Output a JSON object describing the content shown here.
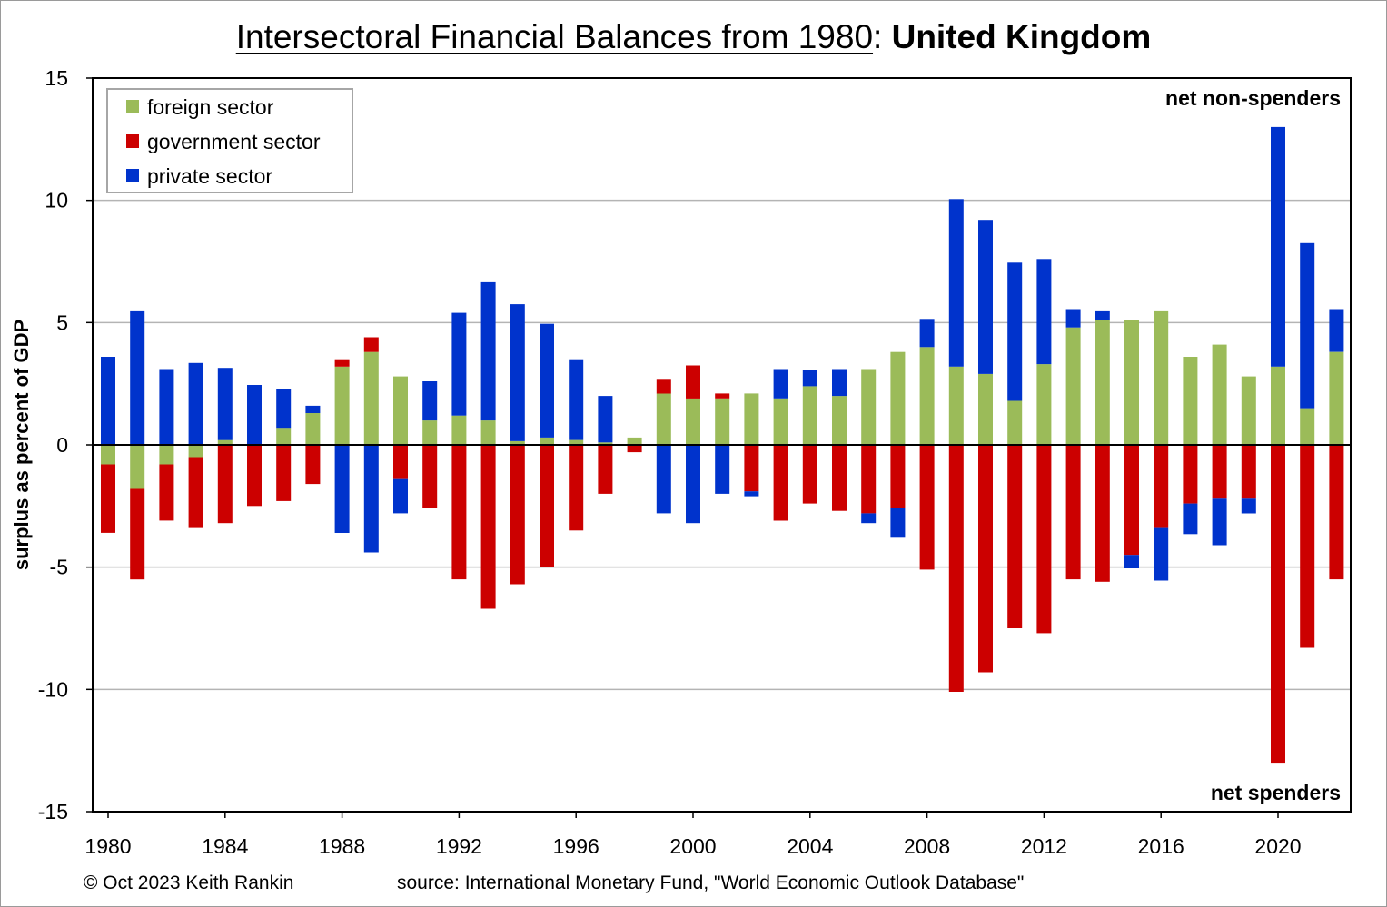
{
  "title": {
    "part1": "Intersectoral Financial Balances from 1980",
    "sep": ":",
    "part2": "United Kingdom"
  },
  "footer": {
    "credit": "© Oct 2023 Keith Rankin",
    "source": "source:  International Monetary Fund, \"World Economic Outlook Database\""
  },
  "chart_data": {
    "type": "bar",
    "stacked": true,
    "ylabel": "surplus as percent of GDP",
    "ylim": [
      -15,
      15
    ],
    "yticks": [
      15,
      10,
      5,
      0,
      -5,
      -10,
      -15
    ],
    "xtick_labels": [
      "1980",
      "1984",
      "1988",
      "1992",
      "1996",
      "2000",
      "2004",
      "2008",
      "2012",
      "2016",
      "2020"
    ],
    "grid": true,
    "legend_position": "top-left",
    "annotations": {
      "top_right": "net non-spenders",
      "bottom_right": "net spenders"
    },
    "categories": [
      1980,
      1981,
      1982,
      1983,
      1984,
      1985,
      1986,
      1987,
      1988,
      1989,
      1990,
      1991,
      1992,
      1993,
      1994,
      1995,
      1996,
      1997,
      1998,
      1999,
      2000,
      2001,
      2002,
      2003,
      2004,
      2005,
      2006,
      2007,
      2008,
      2009,
      2010,
      2011,
      2012,
      2013,
      2014,
      2015,
      2016,
      2017,
      2018,
      2019,
      2020,
      2021,
      2022
    ],
    "series": [
      {
        "name": "foreign sector",
        "color": "#9bbb59",
        "values": [
          -0.8,
          -1.8,
          -0.8,
          -0.5,
          0.2,
          0.0,
          0.7,
          1.3,
          3.2,
          3.8,
          2.8,
          1.0,
          1.2,
          1.0,
          0.15,
          0.3,
          0.2,
          0.1,
          0.3,
          2.1,
          1.9,
          1.9,
          2.1,
          1.9,
          2.4,
          2.0,
          3.1,
          3.8,
          4.0,
          3.2,
          2.9,
          1.8,
          3.3,
          4.8,
          5.1,
          5.1,
          5.5,
          3.6,
          4.1,
          2.8,
          3.2,
          1.5,
          3.8
        ]
      },
      {
        "name": "government sector",
        "color": "#cc0000",
        "values": [
          -2.8,
          -3.7,
          -2.3,
          -2.9,
          -3.2,
          -2.5,
          -2.3,
          -1.6,
          0.3,
          0.6,
          -1.4,
          -2.6,
          -5.5,
          -6.7,
          -5.7,
          -5.0,
          -3.5,
          -2.0,
          -0.3,
          0.6,
          1.35,
          0.2,
          -1.9,
          -3.1,
          -2.4,
          -2.7,
          -2.8,
          -2.6,
          -5.1,
          -10.1,
          -9.3,
          -7.5,
          -7.7,
          -5.5,
          -5.6,
          -4.5,
          -3.4,
          -2.4,
          -2.2,
          -2.2,
          -13.0,
          -8.3,
          -5.5
        ]
      },
      {
        "name": "private sector",
        "color": "#0033cc",
        "values": [
          3.6,
          5.5,
          3.1,
          3.35,
          2.95,
          2.45,
          1.6,
          0.3,
          -3.6,
          -4.4,
          -1.4,
          1.6,
          4.2,
          5.65,
          5.6,
          4.65,
          3.3,
          1.9,
          0.0,
          -2.8,
          -3.2,
          -2.0,
          -0.2,
          1.2,
          0.65,
          1.1,
          -0.4,
          -1.2,
          1.15,
          6.85,
          6.3,
          5.65,
          4.3,
          0.75,
          0.4,
          -0.55,
          -2.15,
          -1.25,
          -1.9,
          -0.6,
          9.8,
          6.75,
          1.75
        ]
      }
    ]
  }
}
